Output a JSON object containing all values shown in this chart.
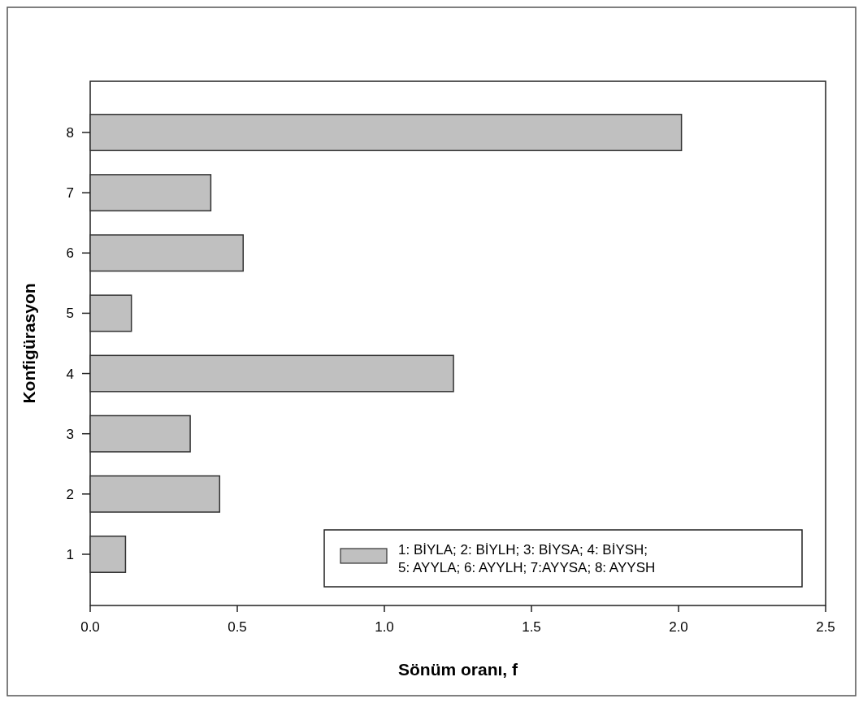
{
  "chart_data": {
    "type": "bar",
    "orientation": "horizontal",
    "xlabel": "Sönüm oranı, f",
    "ylabel": "Konfigürasyon",
    "categories": [
      "8",
      "7",
      "6",
      "5",
      "4",
      "3",
      "2",
      "1"
    ],
    "series": [
      {
        "name": "1: BİYLA; 2: BİYLH; 3: BİYSA; 4: BİYSH; 5: AYYLA; 6: AYYLH; 7:AYYSA; 8: AYYSH",
        "color": "#c0c0c0",
        "values": [
          2.01,
          0.41,
          0.52,
          0.14,
          1.235,
          0.34,
          0.44,
          0.12
        ]
      }
    ],
    "xlim": [
      0,
      2.5
    ],
    "xticks": [
      {
        "value": 0,
        "label": "0.0"
      },
      {
        "value": 0.5,
        "label": "0.5"
      },
      {
        "value": 1,
        "label": "1.0"
      },
      {
        "value": 1.5,
        "label": "1.5"
      },
      {
        "value": 2,
        "label": "2.0"
      },
      {
        "value": 2.5,
        "label": "2.5"
      }
    ],
    "legend": "bottom right",
    "grid": false
  }
}
